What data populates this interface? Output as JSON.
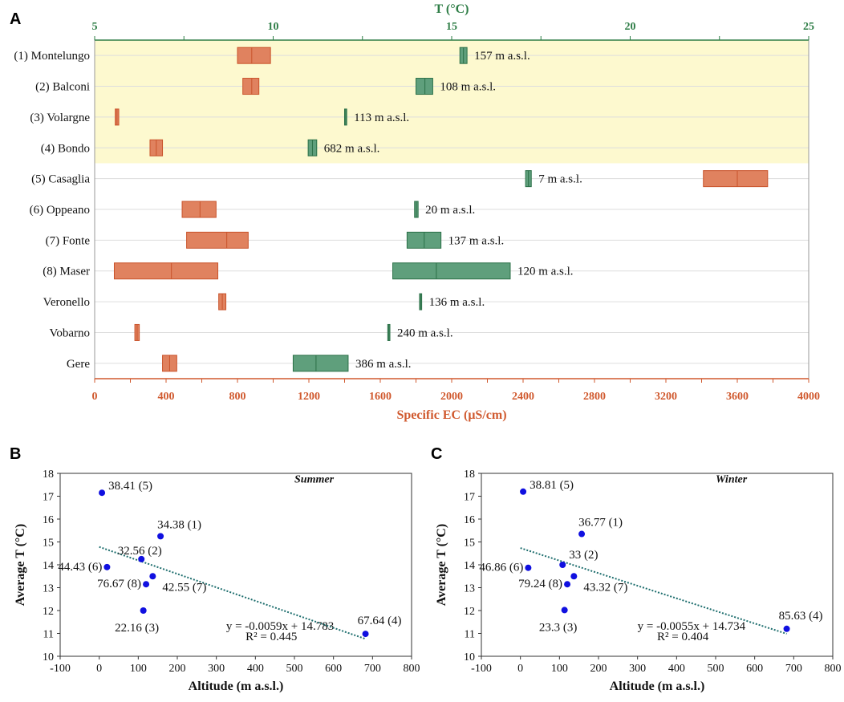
{
  "panels": {
    "a": "A",
    "b": "B",
    "c": "C"
  },
  "chart_data": [
    {
      "type": "range-bar",
      "panel": "A",
      "top_axis_title": "T (°C)",
      "top_axis_range": [
        5,
        25
      ],
      "top_ticks": [
        5,
        10,
        15,
        20,
        25
      ],
      "bottom_axis_title": "Specific EC (μS/cm)",
      "bottom_axis_range": [
        0,
        4000
      ],
      "bottom_ticks": [
        0,
        400,
        800,
        1200,
        1600,
        2000,
        2400,
        2800,
        3200,
        3600,
        4000
      ],
      "colors": {
        "ec": "#e0825f",
        "ec_edge": "#c9532b",
        "t": "#5f9f7c",
        "t_edge": "#2b7047",
        "highlight": "#fdf9cf"
      },
      "highlighted_rows": 4,
      "sites": [
        {
          "name": "(1) Montelungo",
          "ec_min": 800,
          "ec_med": 880,
          "ec_max": 985,
          "t_min": 15.23,
          "t_med": 15.33,
          "t_max": 15.43,
          "altitude": "157 m a.s.l."
        },
        {
          "name": "(2) Balconi",
          "ec_min": 830,
          "ec_med": 880,
          "ec_max": 920,
          "t_min": 14.0,
          "t_med": 14.25,
          "t_max": 14.47,
          "altitude": "108 m a.s.l."
        },
        {
          "name": "(3) Volargne",
          "ec_min": 115,
          "ec_med": 125,
          "ec_max": 135,
          "t_min": 12.0,
          "t_med": 12.03,
          "t_max": 12.06,
          "altitude": "113 m a.s.l."
        },
        {
          "name": "(4) Bondo",
          "ec_min": 310,
          "ec_med": 345,
          "ec_max": 380,
          "t_min": 10.98,
          "t_med": 11.1,
          "t_max": 11.22,
          "altitude": "682 m a.s.l."
        },
        {
          "name": "(5) Casaglia",
          "ec_min": 3410,
          "ec_med": 3600,
          "ec_max": 3770,
          "t_min": 17.07,
          "t_med": 17.15,
          "t_max": 17.23,
          "altitude": "7 m a.s.l."
        },
        {
          "name": "(6) Oppeano",
          "ec_min": 490,
          "ec_med": 590,
          "ec_max": 680,
          "t_min": 13.96,
          "t_med": 14.01,
          "t_max": 14.06,
          "altitude": "20 m a.s.l."
        },
        {
          "name": "(7) Fonte",
          "ec_min": 515,
          "ec_med": 740,
          "ec_max": 860,
          "t_min": 13.75,
          "t_med": 14.23,
          "t_max": 14.7,
          "altitude": "137 m a.s.l."
        },
        {
          "name": "(8) Maser",
          "ec_min": 110,
          "ec_med": 430,
          "ec_max": 690,
          "t_min": 13.35,
          "t_med": 14.57,
          "t_max": 16.64,
          "altitude": "120 m a.s.l."
        },
        {
          "name": "Veronello",
          "ec_min": 695,
          "ec_med": 715,
          "ec_max": 735,
          "t_min": 14.1,
          "t_med": 14.13,
          "t_max": 14.16,
          "altitude": "136 m a.s.l."
        },
        {
          "name": "Vobarno",
          "ec_min": 225,
          "ec_med": 238,
          "ec_max": 250,
          "t_min": 13.21,
          "t_med": 13.24,
          "t_max": 13.27,
          "altitude": "240 m a.s.l."
        },
        {
          "name": "Gere",
          "ec_min": 380,
          "ec_med": 420,
          "ec_max": 460,
          "t_min": 10.56,
          "t_med": 11.2,
          "t_max": 12.1,
          "altitude": "386 m a.s.l."
        }
      ]
    },
    {
      "type": "scatter",
      "panel": "B",
      "season": "Summer",
      "xlabel": "Altitude (m a.s.l.)",
      "ylabel": "Average T (°C)",
      "xlim": [
        -100,
        800
      ],
      "ylim": [
        10,
        18
      ],
      "xticks": [
        -100,
        0,
        100,
        200,
        300,
        400,
        500,
        600,
        700,
        800
      ],
      "yticks": [
        10,
        11,
        12,
        13,
        14,
        15,
        16,
        17,
        18
      ],
      "point_color": "#1010e0",
      "trend_color": "#1e6e6e",
      "trend": {
        "slope": -0.0059,
        "intercept": 14.783,
        "x_from": 0,
        "x_to": 682
      },
      "equation": "y = -0.0059x + 14.783",
      "r2": "R² = 0.445",
      "points": [
        {
          "x": 7,
          "y": 17.15,
          "label": "38.41 (5)",
          "anchor": "right"
        },
        {
          "x": 157,
          "y": 15.25,
          "label": "34.38 (1)",
          "anchor": "up-right"
        },
        {
          "x": 108,
          "y": 14.25,
          "label": "32.56 (2)",
          "anchor": "up-left"
        },
        {
          "x": 20,
          "y": 13.9,
          "label": "44.43 (6)",
          "anchor": "left"
        },
        {
          "x": 137,
          "y": 13.5,
          "label": "42.55 (7)",
          "anchor": "below-right"
        },
        {
          "x": 120,
          "y": 13.15,
          "label": "76.67 (8)",
          "anchor": "left"
        },
        {
          "x": 113,
          "y": 12.0,
          "label": "22.16 (3)",
          "anchor": "below-left"
        },
        {
          "x": 682,
          "y": 10.98,
          "label": "67.64 (4)",
          "anchor": "up"
        }
      ]
    },
    {
      "type": "scatter",
      "panel": "C",
      "season": "Winter",
      "xlabel": "Altitude (m a.s.l.)",
      "ylabel": "Average T (°C)",
      "xlim": [
        -100,
        800
      ],
      "ylim": [
        10,
        18
      ],
      "xticks": [
        -100,
        0,
        100,
        200,
        300,
        400,
        500,
        600,
        700,
        800
      ],
      "yticks": [
        10,
        11,
        12,
        13,
        14,
        15,
        16,
        17,
        18
      ],
      "point_color": "#1010e0",
      "trend_color": "#1e6e6e",
      "trend": {
        "slope": -0.0055,
        "intercept": 14.734,
        "x_from": 0,
        "x_to": 682
      },
      "equation": "y = -0.0055x + 14.734",
      "r2": "R² = 0.404",
      "points": [
        {
          "x": 7,
          "y": 17.2,
          "label": "38.81 (5)",
          "anchor": "right"
        },
        {
          "x": 157,
          "y": 15.35,
          "label": "36.77 (1)",
          "anchor": "up-right"
        },
        {
          "x": 108,
          "y": 14.0,
          "label": "33 (2)",
          "anchor": "up-right2"
        },
        {
          "x": 20,
          "y": 13.87,
          "label": "46.86 (6)",
          "anchor": "left"
        },
        {
          "x": 137,
          "y": 13.5,
          "label": "43.32 (7)",
          "anchor": "below-right"
        },
        {
          "x": 120,
          "y": 13.15,
          "label": "79.24 (8)",
          "anchor": "left"
        },
        {
          "x": 113,
          "y": 12.02,
          "label": "23.3 (3)",
          "anchor": "below-left"
        },
        {
          "x": 682,
          "y": 11.2,
          "label": "85.63 (4)",
          "anchor": "up"
        }
      ]
    }
  ]
}
